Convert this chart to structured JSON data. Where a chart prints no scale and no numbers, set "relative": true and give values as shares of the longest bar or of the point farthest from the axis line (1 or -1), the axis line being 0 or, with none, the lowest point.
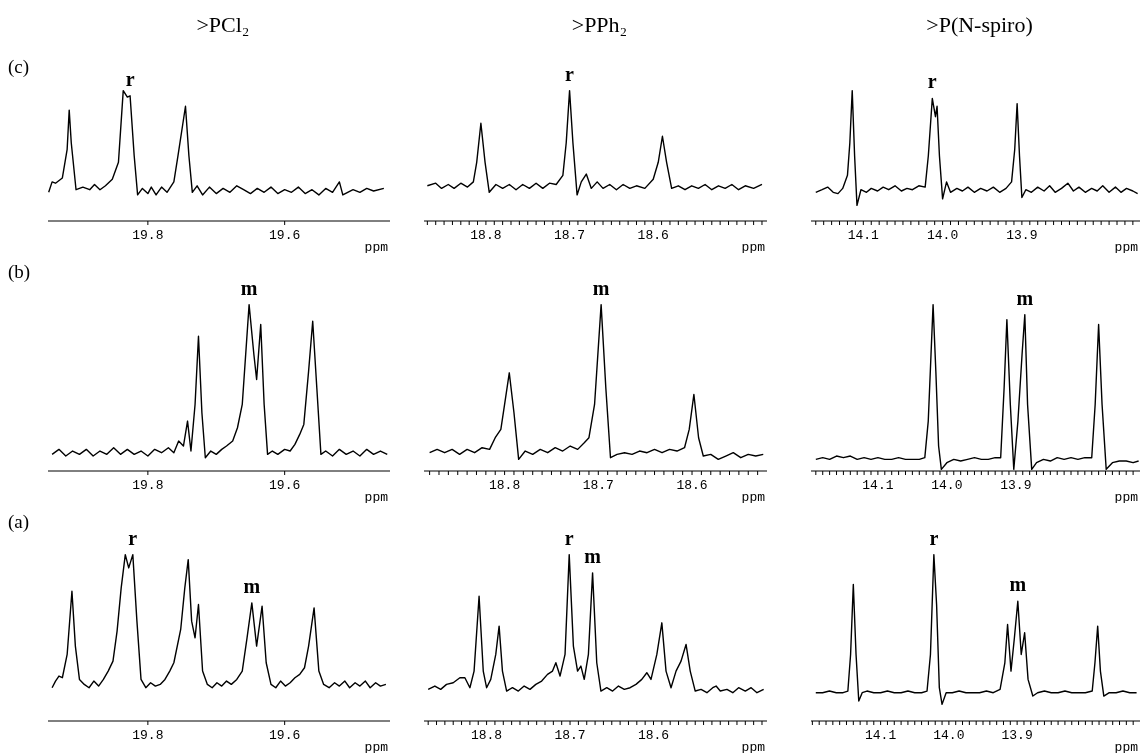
{
  "chart_data": [
    {
      "type": "line",
      "title": ">PCl₂",
      "relative": true,
      "color": "#000000",
      "xlabel": "ppm",
      "xlim": [
        19.946,
        19.446
      ],
      "xticks": [
        19.8,
        19.6
      ],
      "annotations": [
        "(c)",
        {
          "text": "r",
          "x": 19.826,
          "y": 0.96
        }
      ],
      "x": [
        19.945,
        19.94,
        19.935,
        19.925,
        19.918,
        19.915,
        19.912,
        19.905,
        19.895,
        19.885,
        19.878,
        19.87,
        19.862,
        19.852,
        19.843,
        19.836,
        19.83,
        19.826,
        19.82,
        19.815,
        19.808,
        19.8,
        19.795,
        19.788,
        19.78,
        19.772,
        19.762,
        19.756,
        19.745,
        19.74,
        19.735,
        19.728,
        19.72,
        19.71,
        19.7,
        19.69,
        19.68,
        19.67,
        19.66,
        19.65,
        19.64,
        19.63,
        19.62,
        19.61,
        19.6,
        19.59,
        19.58,
        19.57,
        19.56,
        19.55,
        19.54,
        19.53,
        19.52,
        19.515,
        19.5,
        19.49,
        19.48,
        19.47,
        19.455
      ],
      "values": [
        0.22,
        0.3,
        0.29,
        0.33,
        0.55,
        0.85,
        0.6,
        0.24,
        0.26,
        0.24,
        0.28,
        0.24,
        0.27,
        0.32,
        0.45,
        1,
        0.95,
        0.96,
        0.5,
        0.2,
        0.25,
        0.21,
        0.26,
        0.2,
        0.26,
        0.22,
        0.3,
        0.5,
        0.88,
        0.5,
        0.22,
        0.27,
        0.2,
        0.26,
        0.21,
        0.25,
        0.22,
        0.27,
        0.24,
        0.21,
        0.25,
        0.22,
        0.26,
        0.21,
        0.24,
        0.22,
        0.26,
        0.21,
        0.24,
        0.2,
        0.25,
        0.22,
        0.3,
        0.2,
        0.24,
        0.22,
        0.25,
        0.23,
        0.25
      ]
    },
    {
      "type": "line",
      "title": ">PPh₂",
      "relative": true,
      "color": "#000000",
      "xlabel": "ppm",
      "xlim": [
        18.874,
        18.464
      ],
      "xticks": [
        {
          "value": 18.87,
          "label": null
        },
        {
          "value": 18.86,
          "label": null
        },
        {
          "value": 18.85,
          "label": null
        },
        {
          "value": 18.84,
          "label": null
        },
        {
          "value": 18.83,
          "label": null
        },
        {
          "value": 18.82,
          "label": null
        },
        {
          "value": 18.81,
          "label": null
        },
        18.8,
        {
          "value": 18.79,
          "label": null
        },
        {
          "value": 18.78,
          "label": null
        },
        {
          "value": 18.77,
          "label": null
        },
        {
          "value": 18.76,
          "label": null
        },
        {
          "value": 18.75,
          "label": null
        },
        {
          "value": 18.74,
          "label": null
        },
        {
          "value": 18.73,
          "label": null
        },
        {
          "value": 18.72,
          "label": null
        },
        {
          "value": 18.71,
          "label": null
        },
        18.7,
        {
          "value": 18.69,
          "label": null
        },
        {
          "value": 18.68,
          "label": null
        },
        {
          "value": 18.67,
          "label": null
        },
        {
          "value": 18.66,
          "label": null
        },
        {
          "value": 18.65,
          "label": null
        },
        {
          "value": 18.64,
          "label": null
        },
        {
          "value": 18.63,
          "label": null
        },
        {
          "value": 18.62,
          "label": null
        },
        {
          "value": 18.61,
          "label": null
        },
        18.6,
        {
          "value": 18.59,
          "label": null
        },
        {
          "value": 18.58,
          "label": null
        },
        {
          "value": 18.57,
          "label": null
        },
        {
          "value": 18.56,
          "label": null
        },
        {
          "value": 18.55,
          "label": null
        },
        {
          "value": 18.54,
          "label": null
        },
        {
          "value": 18.53,
          "label": null
        },
        {
          "value": 18.52,
          "label": null
        },
        {
          "value": 18.51,
          "label": null
        },
        {
          "value": 18.5,
          "label": null
        },
        {
          "value": 18.49,
          "label": null
        },
        {
          "value": 18.48,
          "label": null
        },
        {
          "value": 18.47,
          "label": null
        }
      ],
      "annotations": [
        {
          "text": "r",
          "x": 18.7,
          "y": 1
        }
      ],
      "x": [
        18.87,
        18.86,
        18.853,
        18.845,
        18.838,
        18.83,
        18.822,
        18.815,
        18.811,
        18.806,
        18.801,
        18.796,
        18.788,
        18.78,
        18.772,
        18.764,
        18.756,
        18.748,
        18.74,
        18.732,
        18.724,
        18.716,
        18.708,
        18.704,
        18.7,
        18.696,
        18.691,
        18.686,
        18.68,
        18.674,
        18.667,
        18.66,
        18.652,
        18.644,
        18.636,
        18.628,
        18.62,
        18.61,
        18.6,
        18.594,
        18.589,
        18.584,
        18.578,
        18.57,
        18.562,
        18.554,
        18.546,
        18.538,
        18.53,
        18.522,
        18.514,
        18.506,
        18.498,
        18.49,
        18.48,
        18.47
      ],
      "values": [
        0.27,
        0.29,
        0.25,
        0.28,
        0.25,
        0.29,
        0.26,
        0.3,
        0.45,
        0.75,
        0.45,
        0.22,
        0.28,
        0.25,
        0.28,
        0.24,
        0.28,
        0.25,
        0.29,
        0.25,
        0.29,
        0.28,
        0.35,
        0.6,
        1,
        0.6,
        0.2,
        0.3,
        0.36,
        0.25,
        0.3,
        0.25,
        0.28,
        0.24,
        0.28,
        0.25,
        0.27,
        0.25,
        0.32,
        0.45,
        0.65,
        0.45,
        0.25,
        0.27,
        0.24,
        0.27,
        0.25,
        0.28,
        0.24,
        0.27,
        0.25,
        0.28,
        0.24,
        0.27,
        0.25,
        0.28
      ]
    },
    {
      "type": "line",
      "title": ">P(N-spiro)",
      "relative": true,
      "color": "#000000",
      "xlabel": "ppm",
      "xlim": [
        14.166,
        13.751
      ],
      "xticks": [
        {
          "value": 14.16,
          "label": null
        },
        {
          "value": 14.15,
          "label": null
        },
        {
          "value": 14.14,
          "label": null
        },
        {
          "value": 14.13,
          "label": null
        },
        {
          "value": 14.12,
          "label": null
        },
        {
          "value": 14.11,
          "label": null
        },
        14.1,
        {
          "value": 14.09,
          "label": null
        },
        {
          "value": 14.08,
          "label": null
        },
        {
          "value": 14.07,
          "label": null
        },
        {
          "value": 14.06,
          "label": null
        },
        {
          "value": 14.05,
          "label": null
        },
        {
          "value": 14.04,
          "label": null
        },
        {
          "value": 14.03,
          "label": null
        },
        {
          "value": 14.02,
          "label": null
        },
        {
          "value": 14.01,
          "label": null
        },
        {
          "value": 14,
          "label": "14.0"
        },
        {
          "value": 13.99,
          "label": null
        },
        {
          "value": 13.98,
          "label": null
        },
        {
          "value": 13.97,
          "label": null
        },
        {
          "value": 13.96,
          "label": null
        },
        {
          "value": 13.95,
          "label": null
        },
        {
          "value": 13.94,
          "label": null
        },
        {
          "value": 13.93,
          "label": null
        },
        {
          "value": 13.92,
          "label": null
        },
        {
          "value": 13.91,
          "label": null
        },
        13.9,
        {
          "value": 13.89,
          "label": null
        },
        {
          "value": 13.88,
          "label": null
        },
        {
          "value": 13.87,
          "label": null
        },
        {
          "value": 13.86,
          "label": null
        },
        {
          "value": 13.85,
          "label": null
        },
        {
          "value": 13.84,
          "label": null
        },
        {
          "value": 13.83,
          "label": null
        },
        {
          "value": 13.82,
          "label": null
        },
        {
          "value": 13.81,
          "label": null
        },
        {
          "value": 13.8,
          "label": null
        },
        {
          "value": 13.79,
          "label": null
        },
        {
          "value": 13.78,
          "label": null
        },
        {
          "value": 13.77,
          "label": null
        },
        {
          "value": 13.76,
          "label": null
        }
      ],
      "annotations": [
        {
          "text": "r",
          "x": 14.013,
          "y": 0.94
        }
      ],
      "x": [
        14.16,
        14.152,
        14.145,
        14.138,
        14.132,
        14.126,
        14.12,
        14.117,
        14.114,
        14.111,
        14.108,
        14.103,
        14.096,
        14.09,
        14.082,
        14.075,
        14.068,
        14.06,
        14.052,
        14.045,
        14.038,
        14.03,
        14.022,
        14.018,
        14.013,
        14.009,
        14.007,
        14.004,
        14.0,
        13.995,
        13.99,
        13.982,
        13.975,
        13.968,
        13.96,
        13.952,
        13.944,
        13.936,
        13.928,
        13.92,
        13.913,
        13.909,
        13.906,
        13.903,
        13.9,
        13.895,
        13.888,
        13.88,
        13.872,
        13.865,
        13.858,
        13.85,
        13.842,
        13.835,
        13.828,
        13.82,
        13.812,
        13.805,
        13.798,
        13.79,
        13.782,
        13.775,
        13.768,
        13.76,
        13.754
      ],
      "values": [
        0.22,
        0.24,
        0.26,
        0.22,
        0.21,
        0.25,
        0.35,
        0.6,
        1,
        0.5,
        0.12,
        0.24,
        0.22,
        0.25,
        0.23,
        0.26,
        0.24,
        0.27,
        0.23,
        0.25,
        0.24,
        0.27,
        0.26,
        0.5,
        0.94,
        0.8,
        0.88,
        0.5,
        0.17,
        0.3,
        0.22,
        0.25,
        0.23,
        0.26,
        0.22,
        0.25,
        0.23,
        0.26,
        0.22,
        0.25,
        0.3,
        0.55,
        0.9,
        0.5,
        0.18,
        0.24,
        0.22,
        0.26,
        0.23,
        0.27,
        0.22,
        0.25,
        0.29,
        0.23,
        0.26,
        0.22,
        0.25,
        0.23,
        0.27,
        0.22,
        0.26,
        0.22,
        0.25,
        0.23,
        0.21
      ]
    },
    {
      "type": "line",
      "relative": true,
      "color": "#000000",
      "xlabel": "ppm",
      "xlim": [
        19.946,
        19.446
      ],
      "xticks": [
        19.8,
        19.6
      ],
      "annotations": [
        "(b)",
        {
          "text": "m",
          "x": 19.652,
          "y": 1
        }
      ],
      "x": [
        19.94,
        19.93,
        19.92,
        19.91,
        19.9,
        19.89,
        19.88,
        19.87,
        19.86,
        19.85,
        19.84,
        19.83,
        19.82,
        19.81,
        19.8,
        19.79,
        19.78,
        19.77,
        19.762,
        19.755,
        19.748,
        19.742,
        19.737,
        19.731,
        19.726,
        19.721,
        19.716,
        19.708,
        19.7,
        19.692,
        19.685,
        19.676,
        19.669,
        19.662,
        19.652,
        19.645,
        19.641,
        19.635,
        19.63,
        19.625,
        19.618,
        19.61,
        19.6,
        19.592,
        19.585,
        19.578,
        19.572,
        19.565,
        19.559,
        19.553,
        19.547,
        19.54,
        19.53,
        19.52,
        19.51,
        19.5,
        19.49,
        19.48,
        19.47,
        19.46,
        19.45
      ],
      "values": [
        0.1,
        0.13,
        0.09,
        0.12,
        0.1,
        0.13,
        0.09,
        0.12,
        0.1,
        0.14,
        0.1,
        0.13,
        0.1,
        0.12,
        0.09,
        0.13,
        0.11,
        0.14,
        0.11,
        0.18,
        0.15,
        0.3,
        0.12,
        0.4,
        0.81,
        0.35,
        0.08,
        0.12,
        0.1,
        0.13,
        0.15,
        0.18,
        0.26,
        0.4,
        1,
        0.7,
        0.55,
        0.88,
        0.4,
        0.1,
        0.12,
        0.1,
        0.13,
        0.12,
        0.16,
        0.22,
        0.28,
        0.6,
        0.9,
        0.5,
        0.1,
        0.12,
        0.09,
        0.13,
        0.1,
        0.12,
        0.09,
        0.13,
        0.1,
        0.12,
        0.1
      ]
    },
    {
      "type": "line",
      "relative": true,
      "color": "#000000",
      "xlabel": "ppm",
      "xlim": [
        18.886,
        18.52
      ],
      "xticks": [
        {
          "value": 18.88,
          "label": null
        },
        {
          "value": 18.87,
          "label": null
        },
        {
          "value": 18.86,
          "label": null
        },
        {
          "value": 18.85,
          "label": null
        },
        {
          "value": 18.84,
          "label": null
        },
        {
          "value": 18.83,
          "label": null
        },
        {
          "value": 18.82,
          "label": null
        },
        {
          "value": 18.81,
          "label": null
        },
        18.8,
        {
          "value": 18.79,
          "label": null
        },
        {
          "value": 18.78,
          "label": null
        },
        {
          "value": 18.77,
          "label": null
        },
        {
          "value": 18.76,
          "label": null
        },
        {
          "value": 18.75,
          "label": null
        },
        {
          "value": 18.74,
          "label": null
        },
        {
          "value": 18.73,
          "label": null
        },
        {
          "value": 18.72,
          "label": null
        },
        {
          "value": 18.71,
          "label": null
        },
        18.7,
        {
          "value": 18.69,
          "label": null
        },
        {
          "value": 18.68,
          "label": null
        },
        {
          "value": 18.67,
          "label": null
        },
        {
          "value": 18.66,
          "label": null
        },
        {
          "value": 18.65,
          "label": null
        },
        {
          "value": 18.64,
          "label": null
        },
        {
          "value": 18.63,
          "label": null
        },
        {
          "value": 18.62,
          "label": null
        },
        {
          "value": 18.61,
          "label": null
        },
        18.6,
        {
          "value": 18.59,
          "label": null
        },
        {
          "value": 18.58,
          "label": null
        },
        {
          "value": 18.57,
          "label": null
        },
        {
          "value": 18.56,
          "label": null
        },
        {
          "value": 18.55,
          "label": null
        },
        {
          "value": 18.54,
          "label": null
        },
        {
          "value": 18.53,
          "label": null
        }
      ],
      "annotations": [
        {
          "text": "m",
          "x": 18.697,
          "y": 1
        }
      ],
      "x": [
        18.88,
        18.872,
        18.864,
        18.856,
        18.848,
        18.84,
        18.832,
        18.824,
        18.816,
        18.81,
        18.804,
        18.8,
        18.795,
        18.79,
        18.785,
        18.778,
        18.77,
        18.762,
        18.754,
        18.746,
        18.738,
        18.73,
        18.722,
        18.715,
        18.71,
        18.704,
        18.697,
        18.692,
        18.687,
        18.68,
        18.672,
        18.664,
        18.656,
        18.648,
        18.64,
        18.632,
        18.624,
        18.616,
        18.608,
        18.603,
        18.598,
        18.593,
        18.588,
        18.58,
        18.572,
        18.564,
        18.556,
        18.548,
        18.54,
        18.532,
        18.524
      ],
      "values": [
        0.11,
        0.13,
        0.11,
        0.13,
        0.1,
        0.13,
        0.11,
        0.14,
        0.13,
        0.2,
        0.25,
        0.4,
        0.59,
        0.35,
        0.07,
        0.12,
        0.1,
        0.13,
        0.11,
        0.14,
        0.12,
        0.15,
        0.13,
        0.17,
        0.2,
        0.4,
        1,
        0.5,
        0.08,
        0.1,
        0.11,
        0.1,
        0.12,
        0.11,
        0.13,
        0.11,
        0.13,
        0.12,
        0.14,
        0.25,
        0.46,
        0.2,
        0.09,
        0.1,
        0.07,
        0.09,
        0.11,
        0.08,
        0.1,
        0.09,
        0.1
      ]
    },
    {
      "type": "line",
      "relative": true,
      "color": "#000000",
      "xlabel": "ppm",
      "xlim": [
        14.197,
        13.72
      ],
      "xticks": [
        {
          "value": 14.19,
          "label": null
        },
        {
          "value": 14.18,
          "label": null
        },
        {
          "value": 14.17,
          "label": null
        },
        {
          "value": 14.16,
          "label": null
        },
        {
          "value": 14.15,
          "label": null
        },
        {
          "value": 14.14,
          "label": null
        },
        {
          "value": 14.13,
          "label": null
        },
        {
          "value": 14.12,
          "label": null
        },
        {
          "value": 14.11,
          "label": null
        },
        14.1,
        {
          "value": 14.09,
          "label": null
        },
        {
          "value": 14.08,
          "label": null
        },
        {
          "value": 14.07,
          "label": null
        },
        {
          "value": 14.06,
          "label": null
        },
        {
          "value": 14.05,
          "label": null
        },
        {
          "value": 14.04,
          "label": null
        },
        {
          "value": 14.03,
          "label": null
        },
        {
          "value": 14.02,
          "label": null
        },
        {
          "value": 14.01,
          "label": null
        },
        {
          "value": 14,
          "label": "14.0"
        },
        {
          "value": 13.99,
          "label": null
        },
        {
          "value": 13.98,
          "label": null
        },
        {
          "value": 13.97,
          "label": null
        },
        {
          "value": 13.96,
          "label": null
        },
        {
          "value": 13.95,
          "label": null
        },
        {
          "value": 13.94,
          "label": null
        },
        {
          "value": 13.93,
          "label": null
        },
        {
          "value": 13.92,
          "label": null
        },
        {
          "value": 13.91,
          "label": null
        },
        13.9,
        {
          "value": 13.89,
          "label": null
        },
        {
          "value": 13.88,
          "label": null
        },
        {
          "value": 13.87,
          "label": null
        },
        {
          "value": 13.86,
          "label": null
        },
        {
          "value": 13.85,
          "label": null
        },
        {
          "value": 13.84,
          "label": null
        },
        {
          "value": 13.83,
          "label": null
        },
        {
          "value": 13.82,
          "label": null
        },
        {
          "value": 13.81,
          "label": null
        },
        {
          "value": 13.8,
          "label": null
        },
        {
          "value": 13.79,
          "label": null
        },
        {
          "value": 13.78,
          "label": null
        },
        {
          "value": 13.77,
          "label": null
        },
        {
          "value": 13.76,
          "label": null
        },
        {
          "value": 13.75,
          "label": null
        },
        {
          "value": 13.74,
          "label": null
        },
        {
          "value": 13.73,
          "label": null
        }
      ],
      "annotations": [
        {
          "text": "m",
          "x": 13.887,
          "y": 0.94
        }
      ],
      "x": [
        14.19,
        14.18,
        14.17,
        14.16,
        14.15,
        14.14,
        14.13,
        14.12,
        14.11,
        14.1,
        14.09,
        14.08,
        14.07,
        14.06,
        14.05,
        14.04,
        14.032,
        14.027,
        14.023,
        14.02,
        14.016,
        14.012,
        14.008,
        14.0,
        13.99,
        13.98,
        13.97,
        13.96,
        13.95,
        13.94,
        13.93,
        13.922,
        13.917,
        13.913,
        13.908,
        13.903,
        13.897,
        13.891,
        13.887,
        13.883,
        13.877,
        13.87,
        13.86,
        13.85,
        13.84,
        13.83,
        13.82,
        13.81,
        13.8,
        13.79,
        13.785,
        13.78,
        13.775,
        13.769,
        13.76,
        13.75,
        13.74,
        13.73,
        13.722
      ],
      "values": [
        0.07,
        0.08,
        0.07,
        0.09,
        0.08,
        0.09,
        0.07,
        0.08,
        0.07,
        0.08,
        0.07,
        0.07,
        0.08,
        0.07,
        0.07,
        0.07,
        0.08,
        0.3,
        0.7,
        1,
        0.6,
        0.15,
        0.01,
        0.05,
        0.07,
        0.06,
        0.07,
        0.08,
        0.07,
        0.07,
        0.08,
        0.08,
        0.5,
        0.91,
        0.4,
        0.01,
        0.3,
        0.7,
        0.94,
        0.4,
        0.01,
        0.05,
        0.07,
        0.06,
        0.08,
        0.07,
        0.08,
        0.07,
        0.08,
        0.08,
        0.4,
        0.88,
        0.4,
        0.01,
        0.05,
        0.06,
        0.06,
        0.05,
        0.06
      ]
    },
    {
      "type": "line",
      "relative": true,
      "color": "#000000",
      "xlabel": "ppm",
      "xlim": [
        19.946,
        19.446
      ],
      "xticks": [
        19.8,
        19.6
      ],
      "annotations": [
        "(a)",
        {
          "text": "r",
          "x": 19.822,
          "y": 1
        },
        {
          "text": "m",
          "x": 19.648,
          "y": 0.71
        }
      ],
      "x": [
        19.94,
        19.935,
        19.93,
        19.925,
        19.918,
        19.911,
        19.906,
        19.9,
        19.893,
        19.886,
        19.879,
        19.872,
        19.865,
        19.858,
        19.851,
        19.845,
        19.839,
        19.833,
        19.828,
        19.822,
        19.816,
        19.81,
        19.803,
        19.796,
        19.789,
        19.782,
        19.775,
        19.768,
        19.762,
        19.752,
        19.746,
        19.741,
        19.736,
        19.731,
        19.726,
        19.72,
        19.713,
        19.706,
        19.699,
        19.692,
        19.685,
        19.678,
        19.67,
        19.662,
        19.655,
        19.648,
        19.641,
        19.633,
        19.627,
        19.62,
        19.613,
        19.606,
        19.599,
        19.592,
        19.585,
        19.578,
        19.571,
        19.565,
        19.557,
        19.55,
        19.543,
        19.535,
        19.527,
        19.52,
        19.512,
        19.505,
        19.497,
        19.49,
        19.482,
        19.475,
        19.467,
        19.46,
        19.452
      ],
      "values": [
        0.2,
        0.24,
        0.27,
        0.26,
        0.4,
        0.78,
        0.45,
        0.25,
        0.22,
        0.2,
        0.24,
        0.21,
        0.25,
        0.3,
        0.36,
        0.54,
        0.8,
        1,
        0.92,
        1,
        0.6,
        0.25,
        0.2,
        0.23,
        0.21,
        0.22,
        0.25,
        0.3,
        0.35,
        0.55,
        0.8,
        0.97,
        0.6,
        0.5,
        0.7,
        0.3,
        0.22,
        0.2,
        0.23,
        0.21,
        0.24,
        0.22,
        0.25,
        0.3,
        0.5,
        0.71,
        0.45,
        0.69,
        0.35,
        0.22,
        0.2,
        0.24,
        0.21,
        0.23,
        0.26,
        0.28,
        0.32,
        0.45,
        0.68,
        0.3,
        0.22,
        0.2,
        0.23,
        0.21,
        0.24,
        0.2,
        0.23,
        0.21,
        0.24,
        0.2,
        0.23,
        0.21,
        0.22
      ]
    },
    {
      "type": "line",
      "relative": true,
      "color": "#000000",
      "xlabel": "ppm",
      "xlim": [
        18.875,
        18.464
      ],
      "xticks": [
        {
          "value": 18.87,
          "label": null
        },
        {
          "value": 18.86,
          "label": null
        },
        {
          "value": 18.85,
          "label": null
        },
        {
          "value": 18.84,
          "label": null
        },
        {
          "value": 18.83,
          "label": null
        },
        {
          "value": 18.82,
          "label": null
        },
        {
          "value": 18.81,
          "label": null
        },
        18.8,
        {
          "value": 18.79,
          "label": null
        },
        {
          "value": 18.78,
          "label": null
        },
        {
          "value": 18.77,
          "label": null
        },
        {
          "value": 18.76,
          "label": null
        },
        {
          "value": 18.75,
          "label": null
        },
        {
          "value": 18.74,
          "label": null
        },
        {
          "value": 18.73,
          "label": null
        },
        {
          "value": 18.72,
          "label": null
        },
        {
          "value": 18.71,
          "label": null
        },
        18.7,
        {
          "value": 18.69,
          "label": null
        },
        {
          "value": 18.68,
          "label": null
        },
        {
          "value": 18.67,
          "label": null
        },
        {
          "value": 18.66,
          "label": null
        },
        {
          "value": 18.65,
          "label": null
        },
        {
          "value": 18.64,
          "label": null
        },
        {
          "value": 18.63,
          "label": null
        },
        {
          "value": 18.62,
          "label": null
        },
        {
          "value": 18.61,
          "label": null
        },
        18.6,
        {
          "value": 18.59,
          "label": null
        },
        {
          "value": 18.58,
          "label": null
        },
        {
          "value": 18.57,
          "label": null
        },
        {
          "value": 18.56,
          "label": null
        },
        {
          "value": 18.55,
          "label": null
        },
        {
          "value": 18.54,
          "label": null
        },
        {
          "value": 18.53,
          "label": null
        },
        {
          "value": 18.52,
          "label": null
        },
        {
          "value": 18.51,
          "label": null
        },
        {
          "value": 18.5,
          "label": null
        },
        {
          "value": 18.49,
          "label": null
        },
        {
          "value": 18.48,
          "label": null
        },
        {
          "value": 18.47,
          "label": null
        }
      ],
      "annotations": [
        {
          "text": "r",
          "x": 18.701,
          "y": 1
        },
        {
          "text": "m",
          "x": 18.673,
          "y": 0.89
        }
      ],
      "x": [
        18.87,
        18.862,
        18.855,
        18.848,
        18.84,
        18.832,
        18.826,
        18.82,
        18.815,
        18.809,
        18.804,
        18.8,
        18.795,
        18.789,
        18.785,
        18.781,
        18.776,
        18.769,
        18.762,
        18.755,
        18.748,
        18.741,
        18.734,
        18.727,
        18.721,
        18.717,
        18.712,
        18.706,
        18.701,
        18.696,
        18.691,
        18.687,
        18.683,
        18.678,
        18.673,
        18.668,
        18.663,
        18.656,
        18.649,
        18.642,
        18.635,
        18.628,
        18.621,
        18.614,
        18.608,
        18.603,
        18.596,
        18.59,
        18.585,
        18.579,
        18.573,
        18.567,
        18.561,
        18.556,
        18.55,
        18.543,
        18.536,
        18.529,
        18.525,
        18.52,
        18.512,
        18.505,
        18.498,
        18.49,
        18.483,
        18.476,
        18.468
      ],
      "values": [
        0.19,
        0.21,
        0.19,
        0.22,
        0.23,
        0.26,
        0.26,
        0.2,
        0.3,
        0.75,
        0.3,
        0.2,
        0.25,
        0.4,
        0.57,
        0.3,
        0.18,
        0.2,
        0.18,
        0.21,
        0.19,
        0.22,
        0.24,
        0.28,
        0.3,
        0.35,
        0.27,
        0.4,
        1,
        0.45,
        0.3,
        0.33,
        0.25,
        0.4,
        0.89,
        0.35,
        0.18,
        0.2,
        0.18,
        0.21,
        0.19,
        0.2,
        0.22,
        0.25,
        0.29,
        0.25,
        0.4,
        0.59,
        0.3,
        0.2,
        0.3,
        0.36,
        0.46,
        0.3,
        0.18,
        0.19,
        0.17,
        0.2,
        0.21,
        0.18,
        0.19,
        0.17,
        0.2,
        0.18,
        0.2,
        0.17,
        0.19
      ]
    },
    {
      "type": "line",
      "relative": true,
      "color": "#000000",
      "xlabel": "ppm",
      "xlim": [
        14.202,
        13.72
      ],
      "xticks": [
        {
          "value": 14.2,
          "label": null
        },
        {
          "value": 14.19,
          "label": null
        },
        {
          "value": 14.18,
          "label": null
        },
        {
          "value": 14.17,
          "label": null
        },
        {
          "value": 14.16,
          "label": null
        },
        {
          "value": 14.15,
          "label": null
        },
        {
          "value": 14.14,
          "label": null
        },
        {
          "value": 14.13,
          "label": null
        },
        {
          "value": 14.12,
          "label": null
        },
        {
          "value": 14.11,
          "label": null
        },
        14.1,
        {
          "value": 14.09,
          "label": null
        },
        {
          "value": 14.08,
          "label": null
        },
        {
          "value": 14.07,
          "label": null
        },
        {
          "value": 14.06,
          "label": null
        },
        {
          "value": 14.05,
          "label": null
        },
        {
          "value": 14.04,
          "label": null
        },
        {
          "value": 14.03,
          "label": null
        },
        {
          "value": 14.02,
          "label": null
        },
        {
          "value": 14.01,
          "label": null
        },
        {
          "value": 14,
          "label": "14.0"
        },
        {
          "value": 13.99,
          "label": null
        },
        {
          "value": 13.98,
          "label": null
        },
        {
          "value": 13.97,
          "label": null
        },
        {
          "value": 13.96,
          "label": null
        },
        {
          "value": 13.95,
          "label": null
        },
        {
          "value": 13.94,
          "label": null
        },
        {
          "value": 13.93,
          "label": null
        },
        {
          "value": 13.92,
          "label": null
        },
        {
          "value": 13.91,
          "label": null
        },
        13.9,
        {
          "value": 13.89,
          "label": null
        },
        {
          "value": 13.88,
          "label": null
        },
        {
          "value": 13.87,
          "label": null
        },
        {
          "value": 13.86,
          "label": null
        },
        {
          "value": 13.85,
          "label": null
        },
        {
          "value": 13.84,
          "label": null
        },
        {
          "value": 13.83,
          "label": null
        },
        {
          "value": 13.82,
          "label": null
        },
        {
          "value": 13.81,
          "label": null
        },
        {
          "value": 13.8,
          "label": null
        },
        {
          "value": 13.79,
          "label": null
        },
        {
          "value": 13.78,
          "label": null
        },
        {
          "value": 13.77,
          "label": null
        },
        {
          "value": 13.76,
          "label": null
        },
        {
          "value": 13.75,
          "label": null
        },
        {
          "value": 13.74,
          "label": null
        },
        {
          "value": 13.73,
          "label": null
        }
      ],
      "annotations": [
        {
          "text": "r",
          "x": 14.022,
          "y": 1
        },
        {
          "text": "m",
          "x": 13.899,
          "y": 0.72
        }
      ],
      "x": [
        14.195,
        14.185,
        14.175,
        14.165,
        14.155,
        14.148,
        14.144,
        14.14,
        14.136,
        14.132,
        14.127,
        14.12,
        14.11,
        14.1,
        14.09,
        14.08,
        14.07,
        14.06,
        14.05,
        14.04,
        14.032,
        14.027,
        14.022,
        14.018,
        14.014,
        14.01,
        14.004,
        13.995,
        13.985,
        13.975,
        13.965,
        13.955,
        13.945,
        13.935,
        13.925,
        13.918,
        13.914,
        13.909,
        13.904,
        13.899,
        13.894,
        13.889,
        13.884,
        13.877,
        13.87,
        13.86,
        13.85,
        13.84,
        13.83,
        13.82,
        13.81,
        13.8,
        13.79,
        13.786,
        13.782,
        13.778,
        13.773,
        13.765,
        13.755,
        13.745,
        13.735,
        13.725
      ],
      "values": [
        0.17,
        0.17,
        0.18,
        0.17,
        0.17,
        0.18,
        0.4,
        0.82,
        0.4,
        0.12,
        0.17,
        0.18,
        0.17,
        0.17,
        0.18,
        0.17,
        0.17,
        0.18,
        0.17,
        0.17,
        0.18,
        0.4,
        1,
        0.7,
        0.2,
        0.1,
        0.17,
        0.17,
        0.18,
        0.17,
        0.17,
        0.17,
        0.18,
        0.17,
        0.19,
        0.35,
        0.58,
        0.3,
        0.5,
        0.72,
        0.4,
        0.53,
        0.25,
        0.15,
        0.17,
        0.18,
        0.17,
        0.17,
        0.18,
        0.17,
        0.17,
        0.17,
        0.18,
        0.35,
        0.57,
        0.3,
        0.15,
        0.17,
        0.17,
        0.18,
        0.17,
        0.17
      ]
    }
  ]
}
